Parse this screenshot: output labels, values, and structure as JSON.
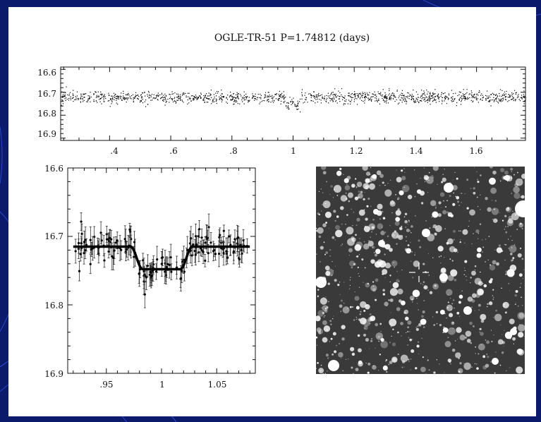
{
  "slide": {
    "background_color": "#0b1a6b",
    "panel_color": "#ffffff"
  },
  "chart_data": [
    {
      "type": "scatter",
      "title": "OGLE-TR-51  P=1.74812 (days)",
      "xlabel": "",
      "ylabel": "",
      "xlim": [
        0.24,
        1.76
      ],
      "ylim": [
        16.91,
        16.59
      ],
      "y_inverted": true,
      "x_ticks": [
        ".4",
        ".6",
        ".8",
        "1",
        "1.2",
        "1.4",
        "1.6"
      ],
      "y_ticks": [
        "16.6",
        "16.7",
        "16.8",
        "16.9"
      ],
      "series": [
        {
          "baseline_mag": 16.72,
          "scatter": 0.013,
          "transit_center": 1.0,
          "transit_halfwidth": 0.025,
          "transit_depth": 0.035,
          "phase_range": [
            0.24,
            1.76
          ],
          "color": "#000000"
        }
      ]
    },
    {
      "type": "scatter",
      "title": "",
      "xlabel": "",
      "ylabel": "",
      "xlim": [
        0.915,
        1.085
      ],
      "ylim": [
        16.9,
        16.6
      ],
      "y_inverted": true,
      "x_ticks": [
        ".95",
        "1",
        "1.05"
      ],
      "y_ticks": [
        "16.6",
        "16.7",
        "16.8",
        "16.9"
      ],
      "series": [
        {
          "points_with_errorbars": true,
          "baseline_mag": 16.715,
          "transit_mag": 16.748,
          "ingress_start": 0.972,
          "flat_start": 0.983,
          "flat_end": 1.017,
          "egress_end": 1.028,
          "color": "#000000"
        }
      ]
    }
  ],
  "finder_image": {
    "background_color": "#3a3a3a",
    "star_color": "#ffffff",
    "marker": "crosshair"
  }
}
